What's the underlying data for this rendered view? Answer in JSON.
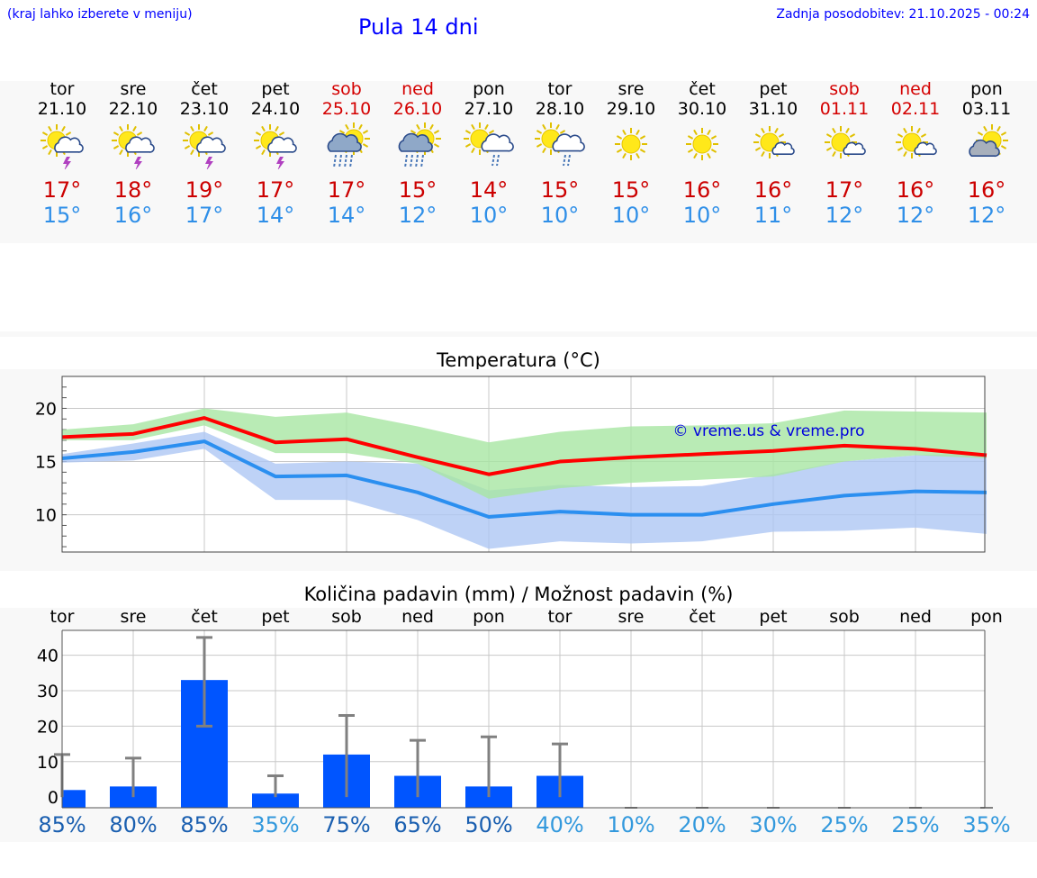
{
  "header": {
    "menu_hint": "(kraj lahko izberete v meniju)",
    "title": "Pula 14 dni",
    "updated": "Zadnja posodobitev: 21.10.2025 - 00:24"
  },
  "days": [
    {
      "name": "tor",
      "date": "21.10",
      "weekend": false,
      "icon": "sun-cloud-thunder-icon",
      "tmax": "17°",
      "tmin": "15°"
    },
    {
      "name": "sre",
      "date": "22.10",
      "weekend": false,
      "icon": "sun-cloud-thunder-icon",
      "tmax": "18°",
      "tmin": "16°"
    },
    {
      "name": "čet",
      "date": "23.10",
      "weekend": false,
      "icon": "sun-cloud-thunder-icon",
      "tmax": "19°",
      "tmin": "17°"
    },
    {
      "name": "pet",
      "date": "24.10",
      "weekend": false,
      "icon": "sun-cloud-thunder-icon",
      "tmax": "17°",
      "tmin": "14°"
    },
    {
      "name": "sob",
      "date": "25.10",
      "weekend": true,
      "icon": "sun-cloud-heavy-rain-icon",
      "tmax": "17°",
      "tmin": "14°"
    },
    {
      "name": "ned",
      "date": "26.10",
      "weekend": true,
      "icon": "sun-cloud-heavy-rain-icon",
      "tmax": "15°",
      "tmin": "12°"
    },
    {
      "name": "pon",
      "date": "27.10",
      "weekend": false,
      "icon": "sun-cloud-rain-icon",
      "tmax": "14°",
      "tmin": "10°"
    },
    {
      "name": "tor",
      "date": "28.10",
      "weekend": false,
      "icon": "sun-cloud-rain-icon",
      "tmax": "15°",
      "tmin": "10°"
    },
    {
      "name": "sre",
      "date": "29.10",
      "weekend": false,
      "icon": "sun-icon",
      "tmax": "15°",
      "tmin": "10°"
    },
    {
      "name": "čet",
      "date": "30.10",
      "weekend": false,
      "icon": "sun-icon",
      "tmax": "16°",
      "tmin": "10°"
    },
    {
      "name": "pet",
      "date": "31.10",
      "weekend": false,
      "icon": "sun-small-cloud-icon",
      "tmax": "16°",
      "tmin": "11°"
    },
    {
      "name": "sob",
      "date": "01.11",
      "weekend": true,
      "icon": "sun-small-cloud-icon",
      "tmax": "17°",
      "tmin": "12°"
    },
    {
      "name": "ned",
      "date": "02.11",
      "weekend": true,
      "icon": "sun-small-cloud-icon",
      "tmax": "16°",
      "tmin": "12°"
    },
    {
      "name": "pon",
      "date": "03.11",
      "weekend": false,
      "icon": "sun-grey-cloud-icon",
      "tmax": "16°",
      "tmin": "12°"
    }
  ],
  "colors": {
    "link_blue": "#0000ff",
    "max_temp": "#cc0000",
    "min_temp": "#2f8fe8",
    "max_band": "#a8e6a3",
    "min_band": "#aec7f4",
    "max_line": "#ff0000",
    "min_line": "#2b8ff0",
    "bar": "#0055ff",
    "errbar": "#808080",
    "pct_high": "#1a5fb0",
    "pct_low": "#3399dd"
  },
  "chart_data": [
    {
      "type": "line",
      "title": "Temperatura (°C)",
      "watermark": "© vreme.us & vreme.pro",
      "ylim": [
        6.5,
        23
      ],
      "yticks": [
        10,
        15,
        20
      ],
      "x": [
        0,
        1,
        2,
        3,
        4,
        5,
        6,
        7,
        8,
        9,
        10,
        11,
        12,
        13
      ],
      "series": [
        {
          "name": "max",
          "values": [
            17.3,
            17.6,
            19.1,
            16.8,
            17.1,
            15.4,
            13.8,
            15.0,
            15.4,
            15.7,
            16.0,
            16.5,
            16.2,
            15.6
          ],
          "band_low": [
            17.0,
            17.0,
            18.4,
            15.8,
            15.8,
            14.8,
            11.5,
            12.5,
            13.0,
            13.3,
            13.6,
            15.0,
            15.6,
            15.3
          ],
          "band_high": [
            18.0,
            18.5,
            20.0,
            19.2,
            19.6,
            18.3,
            16.8,
            17.8,
            18.3,
            18.4,
            18.6,
            19.8,
            19.7,
            19.6
          ]
        },
        {
          "name": "min",
          "values": [
            15.3,
            15.9,
            16.9,
            13.6,
            13.7,
            12.1,
            9.8,
            10.3,
            10.0,
            10.0,
            11.0,
            11.8,
            12.2,
            12.1
          ],
          "band_low": [
            14.9,
            15.1,
            16.2,
            11.4,
            11.4,
            9.5,
            6.8,
            7.5,
            7.3,
            7.5,
            8.4,
            8.5,
            8.8,
            8.2
          ],
          "band_high": [
            15.7,
            16.7,
            17.8,
            14.8,
            15.0,
            14.8,
            12.3,
            12.8,
            12.6,
            12.7,
            13.8,
            15.0,
            15.6,
            15.8
          ]
        }
      ]
    },
    {
      "type": "bar",
      "title": "Količina padavin (mm) / Možnost padavin (%)",
      "categories": [
        "tor",
        "sre",
        "čet",
        "pet",
        "sob",
        "ned",
        "pon",
        "tor",
        "sre",
        "čet",
        "pet",
        "sob",
        "ned",
        "pon"
      ],
      "ylim": [
        -3,
        47
      ],
      "yticks": [
        0,
        10,
        20,
        30,
        40
      ],
      "values": [
        2,
        3,
        33,
        1,
        12,
        6,
        3,
        6,
        0,
        0,
        0,
        0,
        0,
        0
      ],
      "err_low": [
        0,
        0,
        20,
        0,
        0,
        0,
        0,
        0,
        0,
        0,
        0,
        0,
        0,
        0
      ],
      "err_high": [
        12,
        11,
        45,
        6,
        23,
        16,
        17,
        15,
        0,
        0,
        0,
        0,
        0,
        0
      ],
      "probability": [
        "85%",
        "80%",
        "85%",
        "35%",
        "75%",
        "65%",
        "50%",
        "40%",
        "10%",
        "20%",
        "30%",
        "25%",
        "25%",
        "35%"
      ],
      "probability_values": [
        85,
        80,
        85,
        35,
        75,
        65,
        50,
        40,
        10,
        20,
        30,
        25,
        25,
        35
      ]
    }
  ]
}
